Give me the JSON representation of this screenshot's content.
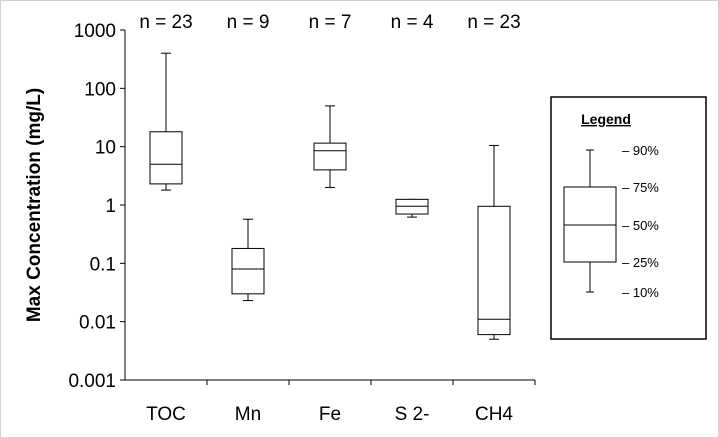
{
  "chart_data": {
    "type": "box",
    "ylabel": "Max Concentration (mg/L)",
    "xlabel": "",
    "yscale": "log",
    "ylim": [
      0.001,
      1000
    ],
    "yticks": [
      0.001,
      0.01,
      0.1,
      1,
      10,
      100,
      1000
    ],
    "ytick_labels": [
      "0.001",
      "0.01",
      "0.1",
      "1",
      "10",
      "100",
      "1000"
    ],
    "categories": [
      "TOC",
      "Mn",
      "Fe",
      "S 2-",
      "CH4"
    ],
    "n_labels": [
      "n = 23",
      "n = 9",
      "n = 7",
      "n = 4",
      "n = 23"
    ],
    "boxes": [
      {
        "category": "TOC",
        "p10": 1.8,
        "p25": 2.3,
        "p50": 5.0,
        "p75": 18,
        "p90": 400
      },
      {
        "category": "Mn",
        "p10": 0.023,
        "p25": 0.03,
        "p50": 0.08,
        "p75": 0.18,
        "p90": 0.57
      },
      {
        "category": "Fe",
        "p10": 2.0,
        "p25": 4.0,
        "p50": 8.5,
        "p75": 11.5,
        "p90": 50
      },
      {
        "category": "S 2-",
        "p10": 0.62,
        "p25": 0.7,
        "p50": 0.95,
        "p75": 1.25,
        "p90": 1.25
      },
      {
        "category": "CH4",
        "p10": 0.005,
        "p25": 0.006,
        "p50": 0.011,
        "p75": 0.95,
        "p90": 10.5
      }
    ],
    "grid": false,
    "legend": {
      "title": "Legend",
      "placement": "right",
      "labels": [
        "– 90%",
        "– 75%",
        "– 50%",
        "– 25%",
        "– 10%"
      ]
    }
  }
}
